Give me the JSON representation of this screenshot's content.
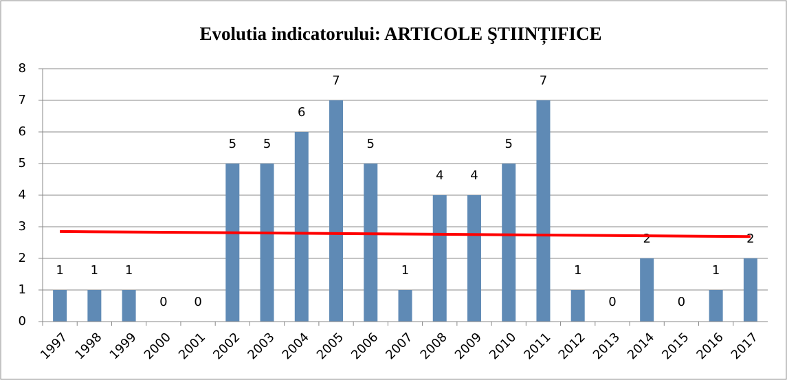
{
  "chart_data": {
    "type": "bar",
    "title": "Evolutia indicatorului: ARTICOLE ŞTIINȚIFICE",
    "categories": [
      "1997",
      "1998",
      "1999",
      "2000",
      "2001",
      "2002",
      "2003",
      "2004",
      "2005",
      "2006",
      "2007",
      "2008",
      "2009",
      "2010",
      "2011",
      "2012",
      "2013",
      "2014",
      "2015",
      "2016",
      "2017"
    ],
    "values": [
      1,
      1,
      1,
      0,
      0,
      5,
      5,
      6,
      7,
      5,
      1,
      4,
      4,
      5,
      7,
      1,
      0,
      2,
      0,
      1,
      2
    ],
    "color": "#5f8ab5",
    "ylim": [
      0,
      8
    ],
    "yticks": [
      0,
      1,
      2,
      3,
      4,
      5,
      6,
      7,
      8
    ],
    "grid": true,
    "trendline": {
      "values": [
        2.85,
        2.69
      ],
      "color": "#ff0000"
    }
  }
}
